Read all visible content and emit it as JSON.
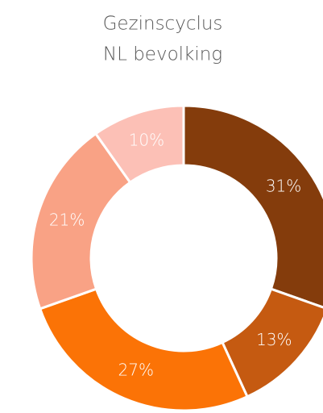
{
  "chart_data": {
    "type": "donut",
    "title": [
      "Gezinscyclus",
      "NL bevolking"
    ],
    "values": [
      31,
      13,
      27,
      21,
      10
    ],
    "value_labels": [
      "31%",
      "13%",
      "27%",
      "21%",
      "10%"
    ],
    "colors": [
      "#843c0c",
      "#c55a11",
      "#fb7306",
      "#f9a285",
      "#fcc0b6"
    ]
  }
}
